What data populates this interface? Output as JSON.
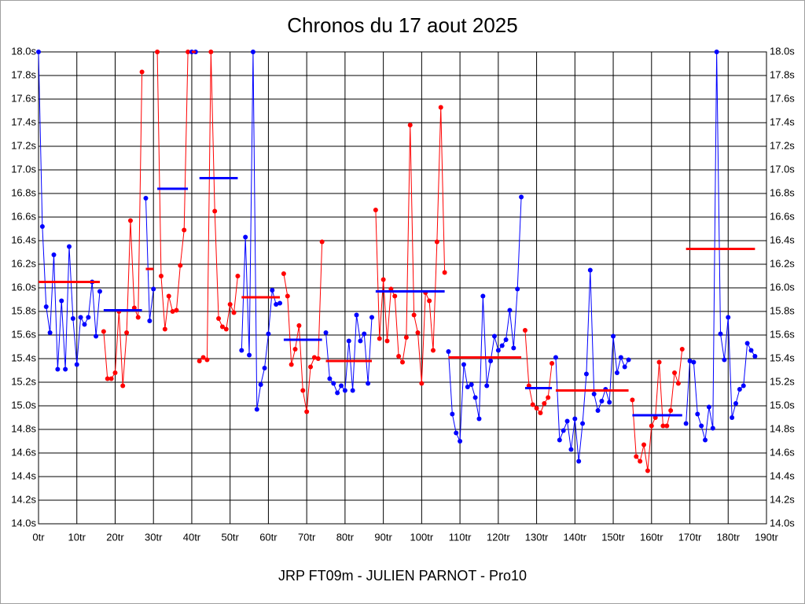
{
  "chart_data": {
    "type": "line",
    "title": "Chronos du 17 aout 2025",
    "footer": "JRP FT09m - JULIEN PARNOT - Pro10",
    "xlim": [
      0,
      190
    ],
    "ylim": [
      14,
      18
    ],
    "grid": true,
    "xticks": [
      {
        "value": 0,
        "label": "0tr"
      },
      {
        "value": 10,
        "label": "10tr"
      },
      {
        "value": 20,
        "label": "20tr"
      },
      {
        "value": 30,
        "label": "30tr"
      },
      {
        "value": 40,
        "label": "40tr"
      },
      {
        "value": 50,
        "label": "50tr"
      },
      {
        "value": 60,
        "label": "60tr"
      },
      {
        "value": 70,
        "label": "70tr"
      },
      {
        "value": 80,
        "label": "80tr"
      },
      {
        "value": 90,
        "label": "90tr"
      },
      {
        "value": 100,
        "label": "100tr"
      },
      {
        "value": 110,
        "label": "110tr"
      },
      {
        "value": 120,
        "label": "120tr"
      },
      {
        "value": 130,
        "label": "130tr"
      },
      {
        "value": 140,
        "label": "140tr"
      },
      {
        "value": 150,
        "label": "150tr"
      },
      {
        "value": 160,
        "label": "160tr"
      },
      {
        "value": 170,
        "label": "170tr"
      },
      {
        "value": 180,
        "label": "180tr"
      },
      {
        "value": 190,
        "label": "190tr"
      }
    ],
    "yticks": [
      {
        "value": 14.0,
        "label": "14.0s"
      },
      {
        "value": 14.2,
        "label": "14.2s"
      },
      {
        "value": 14.4,
        "label": "14.4s"
      },
      {
        "value": 14.6,
        "label": "14.6s"
      },
      {
        "value": 14.8,
        "label": "14.8s"
      },
      {
        "value": 15.0,
        "label": "15.0s"
      },
      {
        "value": 15.2,
        "label": "15.2s"
      },
      {
        "value": 15.4,
        "label": "15.4s"
      },
      {
        "value": 15.6,
        "label": "15.6s"
      },
      {
        "value": 15.8,
        "label": "15.8s"
      },
      {
        "value": 16.0,
        "label": "16.0s"
      },
      {
        "value": 16.2,
        "label": "16.2s"
      },
      {
        "value": 16.4,
        "label": "16.4s"
      },
      {
        "value": 16.6,
        "label": "16.6s"
      },
      {
        "value": 16.8,
        "label": "16.8s"
      },
      {
        "value": 17.0,
        "label": "17.0s"
      },
      {
        "value": 17.2,
        "label": "17.2s"
      },
      {
        "value": 17.4,
        "label": "17.4s"
      },
      {
        "value": 17.6,
        "label": "17.6s"
      },
      {
        "value": 17.8,
        "label": "17.8s"
      },
      {
        "value": 18.0,
        "label": "18.0s"
      }
    ],
    "series": [
      {
        "color": "#0000ff",
        "mean": 16.05,
        "mean_color": "#ff0000",
        "x": [
          0,
          1,
          2,
          3,
          4,
          5,
          6,
          7,
          8,
          9,
          10,
          11,
          12,
          13,
          14,
          15,
          16
        ],
        "values": [
          18.0,
          16.52,
          15.84,
          15.62,
          16.28,
          15.31,
          15.89,
          15.31,
          16.35,
          15.74,
          15.35,
          15.75,
          15.69,
          15.75,
          16.05,
          15.59,
          15.97
        ]
      },
      {
        "color": "#ff0000",
        "mean": 15.81,
        "mean_color": "#0000ff",
        "x": [
          17,
          18,
          19,
          20,
          21,
          22,
          23,
          24,
          25,
          26,
          27
        ],
        "values": [
          15.63,
          15.23,
          15.23,
          15.28,
          15.8,
          15.17,
          15.62,
          16.57,
          15.83,
          15.75,
          17.83
        ]
      },
      {
        "color": "#0000ff",
        "mean": 16.16,
        "mean_color": "#ff0000",
        "x": [
          28,
          29,
          30
        ],
        "values": [
          16.76,
          15.72,
          15.99
        ]
      },
      {
        "color": "#ff0000",
        "mean": 16.84,
        "mean_color": "#0000ff",
        "x": [
          31,
          32,
          33,
          34,
          35,
          36,
          37,
          38,
          39
        ],
        "values": [
          18.0,
          16.1,
          15.65,
          15.93,
          15.8,
          15.81,
          16.19,
          16.49,
          18.0
        ]
      },
      {
        "color": "#0000ff",
        "mean": 18.0,
        "mean_color": "#ff0000",
        "x": [
          40,
          41
        ],
        "values": [
          18.0,
          18.0
        ]
      },
      {
        "color": "#ff0000",
        "mean": 16.93,
        "mean_color": "#0000ff",
        "x": [
          42,
          43,
          44,
          45,
          46,
          47,
          48,
          49,
          50,
          51,
          52
        ],
        "values": [
          15.38,
          15.41,
          15.39,
          18.0,
          16.65,
          15.74,
          15.67,
          15.65,
          15.86,
          15.79,
          16.1
        ]
      },
      {
        "color": "#0000ff",
        "mean": 15.92,
        "mean_color": "#ff0000",
        "x": [
          53,
          54,
          55,
          56,
          57,
          58,
          59,
          60,
          61,
          62,
          63
        ],
        "values": [
          15.47,
          16.43,
          15.43,
          18.0,
          14.97,
          15.18,
          15.32,
          15.61,
          15.98,
          15.86,
          15.87
        ]
      },
      {
        "color": "#ff0000",
        "mean": 15.56,
        "mean_color": "#0000ff",
        "x": [
          64,
          65,
          66,
          67,
          68,
          69,
          70,
          71,
          72,
          73,
          74
        ],
        "values": [
          16.12,
          15.93,
          15.35,
          15.48,
          15.68,
          15.13,
          14.95,
          15.33,
          15.41,
          15.4,
          16.39
        ]
      },
      {
        "color": "#0000ff",
        "mean": 15.38,
        "mean_color": "#ff0000",
        "x": [
          75,
          76,
          77,
          78,
          79,
          80,
          81,
          82,
          83,
          84,
          85,
          86,
          87
        ],
        "values": [
          15.62,
          15.23,
          15.19,
          15.11,
          15.17,
          15.13,
          15.55,
          15.13,
          15.77,
          15.55,
          15.61,
          15.19,
          15.75
        ]
      },
      {
        "color": "#ff0000",
        "mean": 15.97,
        "mean_color": "#0000ff",
        "x": [
          88,
          89,
          90,
          91,
          92,
          93,
          94,
          95,
          96,
          97,
          98,
          99,
          100,
          101,
          102,
          103,
          104,
          105,
          106
        ],
        "values": [
          16.66,
          15.57,
          16.07,
          15.55,
          15.99,
          15.93,
          15.42,
          15.37,
          15.58,
          17.38,
          15.77,
          15.62,
          15.19,
          15.96,
          15.89,
          15.47,
          16.39,
          17.53,
          16.13
        ]
      },
      {
        "color": "#0000ff",
        "mean": 15.41,
        "mean_color": "#ff0000",
        "x": [
          107,
          108,
          109,
          110,
          111,
          112,
          113,
          114,
          115,
          116,
          117,
          118,
          119,
          120,
          121,
          122,
          123,
          124,
          125,
          126
        ],
        "values": [
          15.46,
          14.93,
          14.77,
          14.7,
          15.35,
          15.16,
          15.18,
          15.07,
          14.89,
          15.93,
          15.17,
          15.38,
          15.59,
          15.47,
          15.51,
          15.56,
          15.81,
          15.49,
          15.99,
          16.77
        ]
      },
      {
        "color": "#ff0000",
        "mean": 15.15,
        "mean_color": "#0000ff",
        "x": [
          127,
          128,
          129,
          130,
          131,
          132,
          133,
          134
        ],
        "values": [
          15.64,
          15.17,
          15.01,
          14.98,
          14.94,
          15.02,
          15.07,
          15.36
        ]
      },
      {
        "color": "#0000ff",
        "mean": 15.13,
        "mean_color": "#ff0000",
        "x": [
          135,
          136,
          137,
          138,
          139,
          140,
          141,
          142,
          143,
          144,
          145,
          146,
          147,
          148,
          149,
          150,
          151,
          152,
          153,
          154
        ],
        "values": [
          15.41,
          14.71,
          14.79,
          14.87,
          14.63,
          14.89,
          14.53,
          14.85,
          15.27,
          16.15,
          15.1,
          14.96,
          15.04,
          15.14,
          15.03,
          15.59,
          15.28,
          15.41,
          15.33,
          15.39
        ]
      },
      {
        "color": "#ff0000",
        "mean": 14.92,
        "mean_color": "#0000ff",
        "x": [
          155,
          156,
          157,
          158,
          159,
          160,
          161,
          162,
          163,
          164,
          165,
          166,
          167,
          168
        ],
        "values": [
          15.05,
          14.57,
          14.53,
          14.67,
          14.45,
          14.83,
          14.9,
          15.37,
          14.83,
          14.83,
          14.96,
          15.28,
          15.19,
          15.48
        ]
      },
      {
        "color": "#0000ff",
        "mean": 16.33,
        "mean_color": "#ff0000",
        "x": [
          169,
          170,
          171,
          172,
          173,
          174,
          175,
          176,
          177,
          178,
          179,
          180,
          181,
          182,
          183,
          184,
          185,
          186,
          187
        ],
        "values": [
          14.85,
          15.38,
          15.37,
          14.93,
          14.83,
          14.71,
          14.99,
          14.81,
          18.0,
          15.61,
          15.39,
          15.75,
          14.9,
          15.02,
          15.14,
          15.17,
          15.53,
          15.47,
          15.42
        ]
      }
    ]
  }
}
